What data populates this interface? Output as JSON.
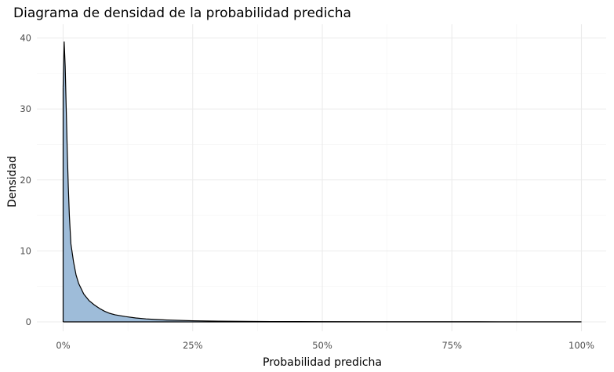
{
  "chart_data": {
    "type": "area",
    "title": "Diagrama de densidad de la probabilidad predicha",
    "xlabel": "Probabilidad predicha",
    "ylabel": "Densidad",
    "xlim": [
      0,
      1
    ],
    "ylim": [
      0,
      40
    ],
    "x_ticks": [
      0,
      0.25,
      0.5,
      0.75,
      1.0
    ],
    "x_tick_labels": [
      "0%",
      "25%",
      "50%",
      "75%",
      "100%"
    ],
    "y_ticks": [
      0,
      10,
      20,
      30,
      40
    ],
    "y_tick_labels": [
      "0",
      "10",
      "20",
      "30",
      "40"
    ],
    "grid": true,
    "fill_color": "#9ebcd9",
    "line_color": "#000000",
    "series": [
      {
        "x": [
          0.0,
          0.002,
          0.004,
          0.006,
          0.008,
          0.01,
          0.012,
          0.015,
          0.02,
          0.025,
          0.03,
          0.04,
          0.05,
          0.06,
          0.07,
          0.08,
          0.09,
          0.1,
          0.12,
          0.14,
          0.16,
          0.18,
          0.2,
          0.25,
          0.3,
          0.35,
          0.4,
          0.5,
          0.6,
          0.7,
          0.8,
          0.9,
          1.0
        ],
        "y": [
          33.0,
          39.5,
          36.0,
          30.0,
          24.0,
          19.0,
          15.0,
          11.0,
          8.5,
          6.6,
          5.4,
          3.9,
          3.0,
          2.4,
          1.9,
          1.5,
          1.2,
          1.0,
          0.75,
          0.55,
          0.42,
          0.33,
          0.26,
          0.16,
          0.1,
          0.07,
          0.05,
          0.03,
          0.02,
          0.015,
          0.01,
          0.008,
          0.006
        ]
      }
    ]
  }
}
